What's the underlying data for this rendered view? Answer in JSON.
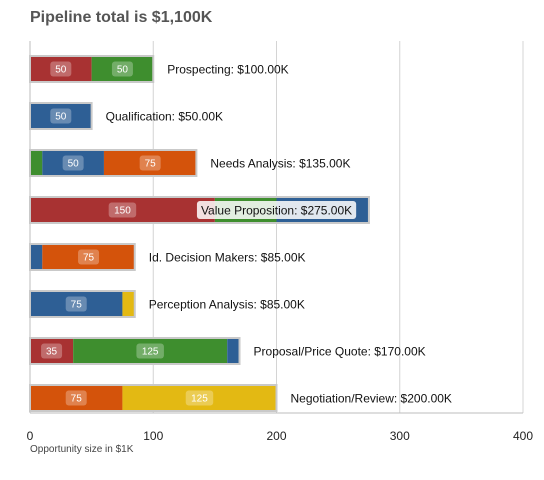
{
  "chart_data": {
    "type": "bar",
    "orientation": "horizontal",
    "stacked": true,
    "title": "Pipeline total is $1,100K",
    "xlabel": "Opportunity size in $1K",
    "ylabel": "",
    "xlim": [
      0,
      400
    ],
    "xticks": [
      0,
      100,
      200,
      300,
      400
    ],
    "grid": true,
    "colors": {
      "red": "#a83232",
      "green": "#3e8e2e",
      "blue": "#2e5f95",
      "orange": "#d4530b",
      "yellow": "#e3b913"
    },
    "bars": [
      {
        "category": "Prospecting",
        "label": "Prospecting: $100.00K",
        "total": 100,
        "segments": [
          {
            "value": 50,
            "color": "red",
            "label": "50"
          },
          {
            "value": 50,
            "color": "green",
            "label": "50"
          }
        ]
      },
      {
        "category": "Qualification",
        "label": "Qualification: $50.00K",
        "total": 50,
        "segments": [
          {
            "value": 50,
            "color": "blue",
            "label": "50"
          }
        ]
      },
      {
        "category": "Needs Analysis",
        "label": "Needs Analysis: $135.00K",
        "total": 135,
        "segments": [
          {
            "value": 10,
            "color": "green",
            "label": ""
          },
          {
            "value": 50,
            "color": "blue",
            "label": "50"
          },
          {
            "value": 75,
            "color": "orange",
            "label": "75"
          }
        ]
      },
      {
        "category": "Value Proposition",
        "label": "Value Proposition: $275.00K",
        "total": 275,
        "highlight_label": true,
        "segments": [
          {
            "value": 150,
            "color": "red",
            "label": "150"
          },
          {
            "value": 50,
            "color": "green",
            "label": ""
          },
          {
            "value": 75,
            "color": "blue",
            "label": ""
          }
        ]
      },
      {
        "category": "Id. Decision Makers",
        "label": "Id. Decision Makers: $85.00K",
        "total": 85,
        "segments": [
          {
            "value": 10,
            "color": "blue",
            "label": ""
          },
          {
            "value": 75,
            "color": "orange",
            "label": "75"
          }
        ]
      },
      {
        "category": "Perception Analysis",
        "label": "Perception Analysis: $85.00K",
        "total": 85,
        "segments": [
          {
            "value": 75,
            "color": "blue",
            "label": "75"
          },
          {
            "value": 10,
            "color": "yellow",
            "label": ""
          }
        ]
      },
      {
        "category": "Proposal/Price Quote",
        "label": "Proposal/Price Quote: $170.00K",
        "total": 170,
        "segments": [
          {
            "value": 35,
            "color": "red",
            "label": "35"
          },
          {
            "value": 125,
            "color": "green",
            "label": "125"
          },
          {
            "value": 10,
            "color": "blue",
            "label": ""
          }
        ]
      },
      {
        "category": "Negotiation/Review",
        "label": "Negotiation/Review: $200.00K",
        "total": 200,
        "segments": [
          {
            "value": 75,
            "color": "orange",
            "label": "75"
          },
          {
            "value": 125,
            "color": "yellow",
            "label": "125"
          }
        ]
      }
    ]
  }
}
